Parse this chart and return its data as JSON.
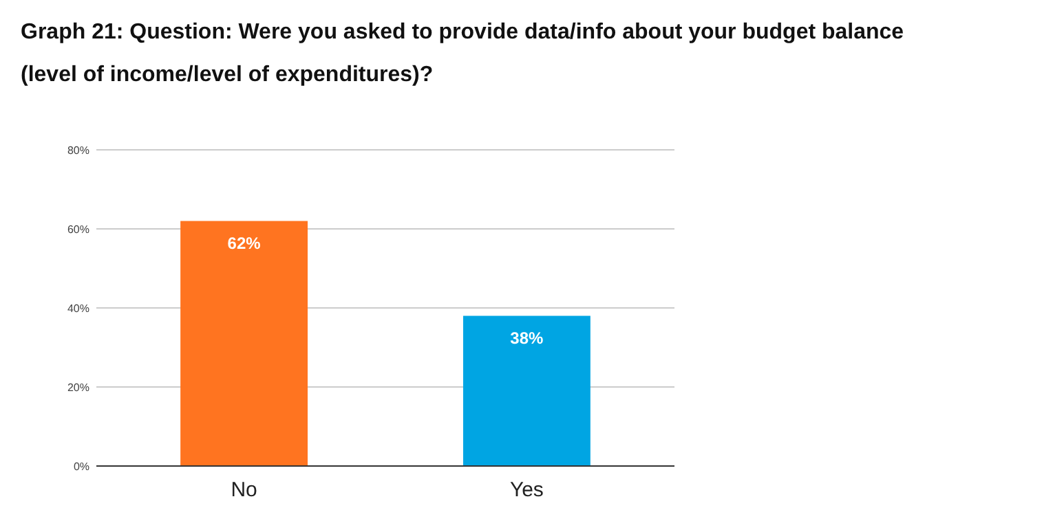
{
  "chart_data": {
    "type": "bar",
    "title": "Graph 21: Question: Were you asked to provide data/info about your budget balance\n(level of income/level of expenditures)?",
    "categories": [
      "No",
      "Yes"
    ],
    "values": [
      62,
      38
    ],
    "colors": [
      "#ff7420",
      "#00a5e3"
    ],
    "value_labels": [
      "62%",
      "38%"
    ],
    "ylim": [
      0,
      80
    ],
    "yticks": [
      {
        "value": 0,
        "label": "0%"
      },
      {
        "value": 20,
        "label": "20%"
      },
      {
        "value": 40,
        "label": "40%"
      },
      {
        "value": 60,
        "label": "60%"
      },
      {
        "value": 80,
        "label": "80%"
      }
    ],
    "grid": "y"
  }
}
